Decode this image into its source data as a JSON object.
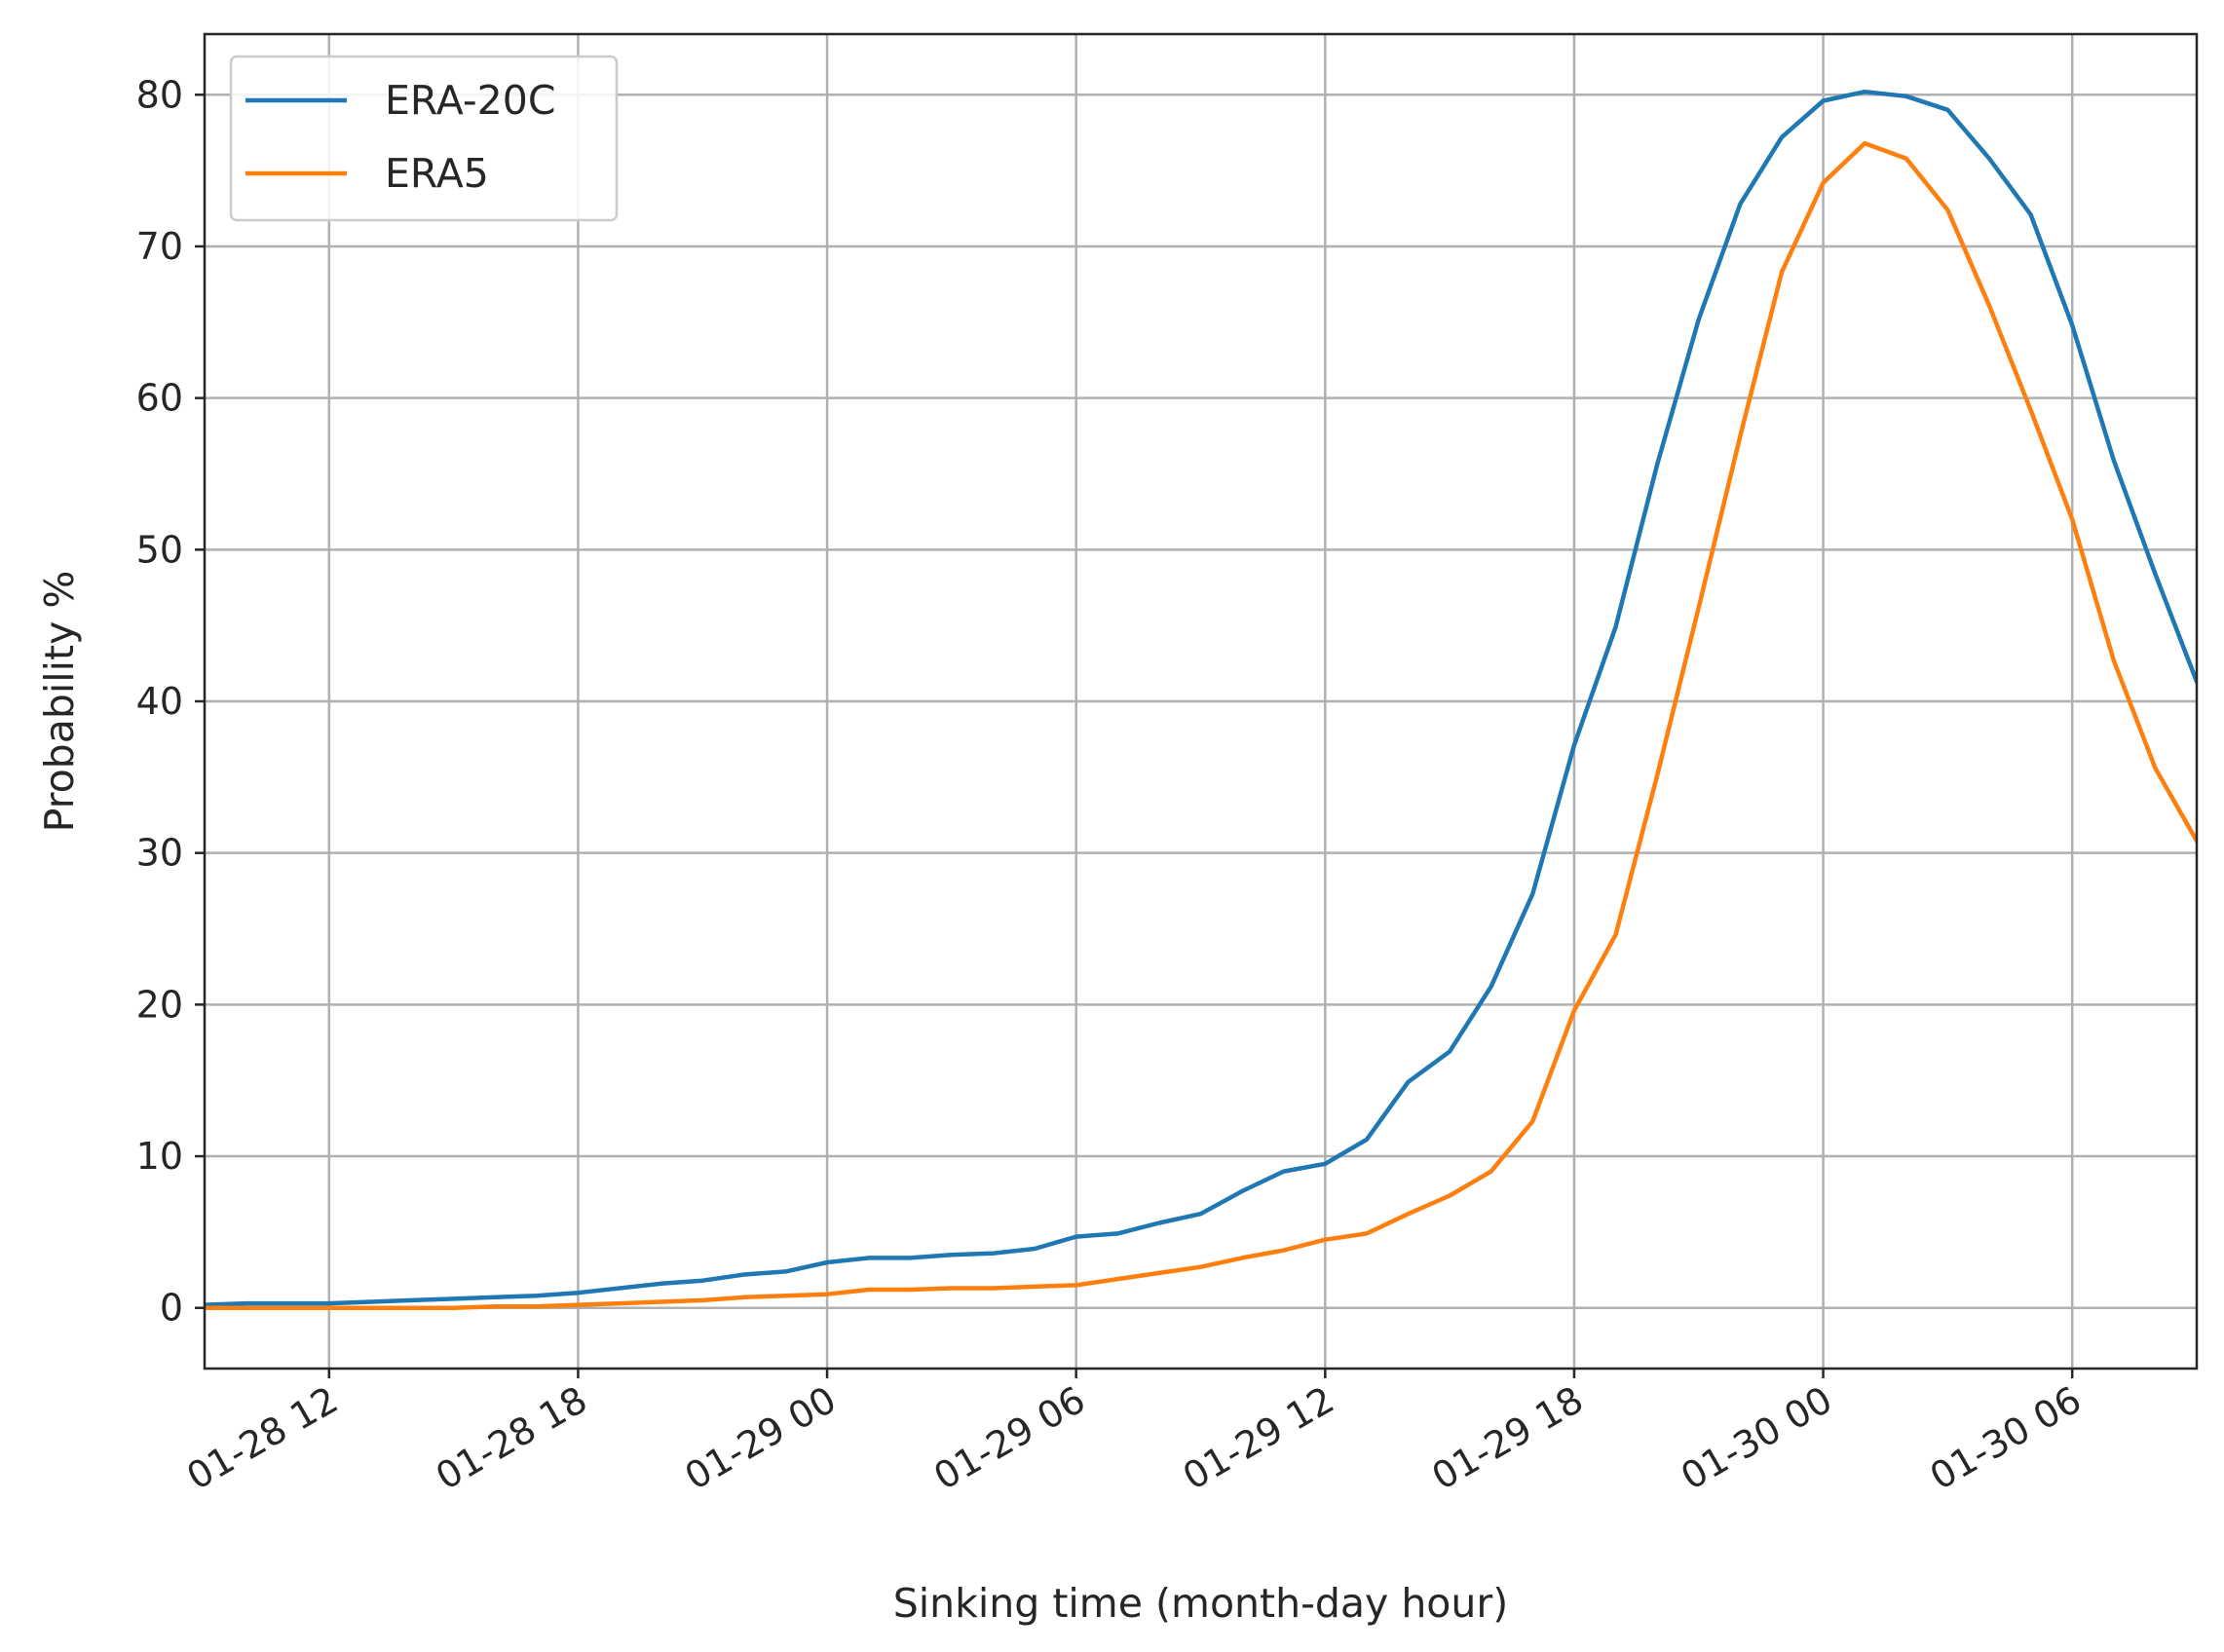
{
  "chart_data": {
    "type": "line",
    "xlabel": "Sinking time (month-day hour)",
    "ylabel": "Probability %",
    "x_unit": "hour",
    "x_start": "01-28 09",
    "xlim": [
      "01-28 09",
      "01-30 09"
    ],
    "ylim": [
      -4,
      84
    ],
    "x_ticks": [
      "01-28 12",
      "01-28 18",
      "01-29 00",
      "01-29 06",
      "01-29 12",
      "01-29 18",
      "01-30 00",
      "01-30 06"
    ],
    "y_ticks": [
      0,
      10,
      20,
      30,
      40,
      50,
      60,
      70,
      80
    ],
    "grid": true,
    "legend_position": "top-left",
    "series": [
      {
        "name": "ERA-20C",
        "color": "#1f77b4",
        "x": [
          "01-28 09",
          "01-28 10",
          "01-28 11",
          "01-28 12",
          "01-28 13",
          "01-28 14",
          "01-28 15",
          "01-28 16",
          "01-28 17",
          "01-28 18",
          "01-28 19",
          "01-28 20",
          "01-28 21",
          "01-28 22",
          "01-28 23",
          "01-29 00",
          "01-29 01",
          "01-29 02",
          "01-29 03",
          "01-29 04",
          "01-29 05",
          "01-29 06",
          "01-29 07",
          "01-29 08",
          "01-29 09",
          "01-29 10",
          "01-29 11",
          "01-29 12",
          "01-29 13",
          "01-29 14",
          "01-29 15",
          "01-29 16",
          "01-29 17",
          "01-29 18",
          "01-29 19",
          "01-29 20",
          "01-29 21",
          "01-29 22",
          "01-29 23",
          "01-30 00",
          "01-30 01",
          "01-30 02",
          "01-30 03",
          "01-30 04",
          "01-30 05",
          "01-30 06",
          "01-30 07",
          "01-30 08",
          "01-30 09"
        ],
        "values": [
          0.2,
          0.3,
          0.3,
          0.3,
          0.4,
          0.5,
          0.6,
          0.7,
          0.8,
          1.0,
          1.3,
          1.6,
          1.8,
          2.2,
          2.4,
          3.0,
          3.3,
          3.3,
          3.5,
          3.6,
          3.9,
          4.7,
          4.9,
          5.6,
          6.2,
          7.7,
          9.0,
          9.5,
          11.1,
          14.9,
          16.9,
          21.2,
          27.3,
          37.1,
          44.9,
          55.6,
          65.2,
          72.8,
          77.2,
          79.6,
          80.2,
          79.9,
          79.0,
          75.8,
          72.1,
          64.8,
          55.9,
          48.4,
          41.3
        ]
      },
      {
        "name": "ERA5",
        "color": "#ff7f0e",
        "x": [
          "01-28 09",
          "01-28 10",
          "01-28 11",
          "01-28 12",
          "01-28 13",
          "01-28 14",
          "01-28 15",
          "01-28 16",
          "01-28 17",
          "01-28 18",
          "01-28 19",
          "01-28 20",
          "01-28 21",
          "01-28 22",
          "01-28 23",
          "01-29 00",
          "01-29 01",
          "01-29 02",
          "01-29 03",
          "01-29 04",
          "01-29 05",
          "01-29 06",
          "01-29 07",
          "01-29 08",
          "01-29 09",
          "01-29 10",
          "01-29 11",
          "01-29 12",
          "01-29 13",
          "01-29 14",
          "01-29 15",
          "01-29 16",
          "01-29 17",
          "01-29 18",
          "01-29 19",
          "01-29 20",
          "01-29 21",
          "01-29 22",
          "01-29 23",
          "01-30 00",
          "01-30 01",
          "01-30 02",
          "01-30 03",
          "01-30 04",
          "01-30 05",
          "01-30 06",
          "01-30 07",
          "01-30 08",
          "01-30 09"
        ],
        "values": [
          0.0,
          0.0,
          0.0,
          0.0,
          0.0,
          0.0,
          0.0,
          0.1,
          0.1,
          0.2,
          0.3,
          0.4,
          0.5,
          0.7,
          0.8,
          0.9,
          1.2,
          1.2,
          1.3,
          1.3,
          1.4,
          1.5,
          1.9,
          2.3,
          2.7,
          3.3,
          3.8,
          4.5,
          4.9,
          6.2,
          7.4,
          9.0,
          12.3,
          19.6,
          24.6,
          35.1,
          46.2,
          57.5,
          68.3,
          74.2,
          76.8,
          75.8,
          72.4,
          66.1,
          59.2,
          52.0,
          42.7,
          35.6,
          30.8
        ]
      }
    ]
  }
}
